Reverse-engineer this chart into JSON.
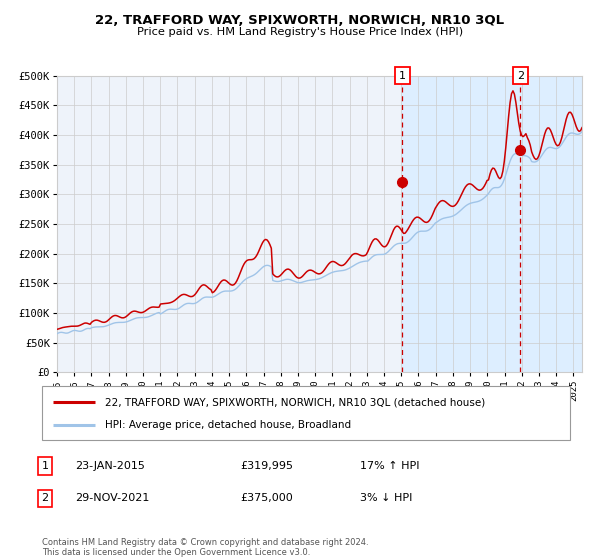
{
  "title": "22, TRAFFORD WAY, SPIXWORTH, NORWICH, NR10 3QL",
  "subtitle": "Price paid vs. HM Land Registry's House Price Index (HPI)",
  "legend_line1": "22, TRAFFORD WAY, SPIXWORTH, NORWICH, NR10 3QL (detached house)",
  "legend_line2": "HPI: Average price, detached house, Broadland",
  "transaction1_date": "23-JAN-2015",
  "transaction1_price": "£319,995",
  "transaction1_hpi": "17% ↑ HPI",
  "transaction2_date": "29-NOV-2021",
  "transaction2_price": "£375,000",
  "transaction2_hpi": "3% ↓ HPI",
  "footnote": "Contains HM Land Registry data © Crown copyright and database right 2024.\nThis data is licensed under the Open Government Licence v3.0.",
  "xmin": 1995.0,
  "xmax": 2025.5,
  "ymin": 0,
  "ymax": 500000,
  "yticks": [
    0,
    50000,
    100000,
    150000,
    200000,
    250000,
    300000,
    350000,
    400000,
    450000,
    500000
  ],
  "ytick_labels": [
    "£0",
    "£50K",
    "£100K",
    "£150K",
    "£200K",
    "£250K",
    "£300K",
    "£350K",
    "£400K",
    "£450K",
    "£500K"
  ],
  "xticks": [
    1995,
    1996,
    1997,
    1998,
    1999,
    2000,
    2001,
    2002,
    2003,
    2004,
    2005,
    2006,
    2007,
    2008,
    2009,
    2010,
    2011,
    2012,
    2013,
    2014,
    2015,
    2016,
    2017,
    2018,
    2019,
    2020,
    2021,
    2022,
    2023,
    2024,
    2025
  ],
  "hpi_color": "#a0c4e8",
  "price_color": "#cc0000",
  "marker_color": "#cc0000",
  "vline_color": "#cc0000",
  "shade_color": "#ddeeff",
  "grid_color": "#cccccc",
  "background_color": "#ffffff",
  "plot_bg_color": "#eef3fa",
  "transaction1_x": 2015.07,
  "transaction2_x": 2021.92,
  "transaction1_y": 319995,
  "transaction2_y": 375000
}
